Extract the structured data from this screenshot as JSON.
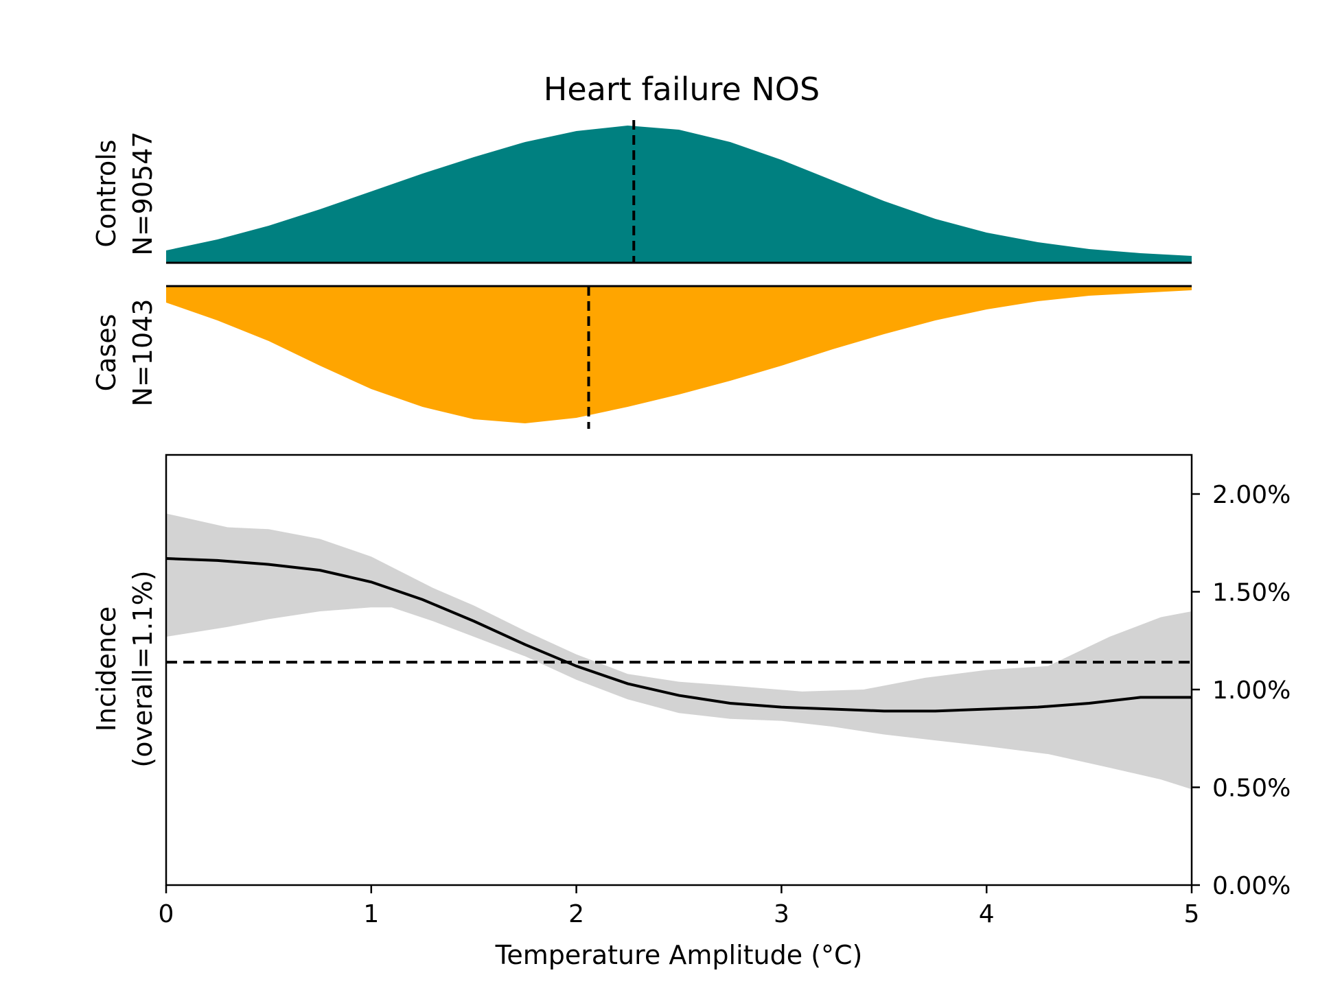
{
  "chart_data": {
    "type": "area",
    "title": "Heart failure NOS",
    "xlabel": "Temperature Amplitude (°C)",
    "xlim": [
      0,
      5
    ],
    "x_ticks": [
      "0",
      "1",
      "2",
      "3",
      "4",
      "5"
    ],
    "panels": {
      "controls": {
        "label_line1": "Controls",
        "label_line2": "N=90547",
        "color": "#008080",
        "mean_marker_x": 2.28,
        "density": {
          "x": [
            0,
            0.25,
            0.5,
            0.75,
            1.0,
            1.25,
            1.5,
            1.75,
            2.0,
            2.25,
            2.5,
            2.75,
            3.0,
            3.25,
            3.5,
            3.75,
            4.0,
            4.25,
            4.5,
            4.75,
            5.0
          ],
          "y": [
            0.09,
            0.17,
            0.27,
            0.39,
            0.52,
            0.65,
            0.77,
            0.88,
            0.96,
            1.0,
            0.97,
            0.88,
            0.75,
            0.6,
            0.45,
            0.32,
            0.22,
            0.15,
            0.1,
            0.07,
            0.05
          ]
        }
      },
      "cases": {
        "label_line1": "Cases",
        "label_line2": "N=1043",
        "color": "#FFA500",
        "mean_marker_x": 2.06,
        "density": {
          "x": [
            0,
            0.25,
            0.5,
            0.75,
            1.0,
            1.25,
            1.5,
            1.75,
            2.0,
            2.25,
            2.5,
            2.75,
            3.0,
            3.25,
            3.5,
            3.75,
            4.0,
            4.25,
            4.5,
            4.75,
            5.0
          ],
          "y": [
            0.12,
            0.25,
            0.4,
            0.58,
            0.75,
            0.88,
            0.97,
            1.0,
            0.96,
            0.88,
            0.79,
            0.69,
            0.58,
            0.46,
            0.35,
            0.25,
            0.17,
            0.11,
            0.07,
            0.05,
            0.03
          ]
        }
      }
    },
    "incidence": {
      "ylabel_line1": "Incidence",
      "ylabel_line2": "(overall=1.1%)",
      "ylim": [
        0,
        2.2
      ],
      "y_ticks": [
        {
          "value": 0.0,
          "label": "0.00%"
        },
        {
          "value": 0.5,
          "label": "0.50%"
        },
        {
          "value": 1.0,
          "label": "1.00%"
        },
        {
          "value": 1.5,
          "label": "1.50%"
        },
        {
          "value": 2.0,
          "label": "2.00%"
        }
      ],
      "overall_line_y": 1.14,
      "line": {
        "x": [
          0,
          0.25,
          0.5,
          0.75,
          1.0,
          1.25,
          1.5,
          1.75,
          2.0,
          2.25,
          2.5,
          2.75,
          3.0,
          3.25,
          3.5,
          3.75,
          4.0,
          4.25,
          4.5,
          4.75,
          5.0
        ],
        "y": [
          1.67,
          1.66,
          1.64,
          1.61,
          1.55,
          1.46,
          1.35,
          1.23,
          1.12,
          1.03,
          0.97,
          0.93,
          0.91,
          0.9,
          0.89,
          0.89,
          0.9,
          0.91,
          0.93,
          0.96,
          0.96
        ]
      },
      "ci_upper": {
        "x": [
          0,
          0.3,
          0.5,
          0.75,
          1.0,
          1.3,
          1.5,
          1.75,
          2.0,
          2.25,
          2.5,
          2.75,
          3.1,
          3.4,
          3.7,
          4.0,
          4.3,
          4.6,
          4.85,
          5.0
        ],
        "y": [
          1.9,
          1.83,
          1.82,
          1.77,
          1.68,
          1.52,
          1.43,
          1.3,
          1.18,
          1.08,
          1.04,
          1.02,
          0.99,
          1.0,
          1.06,
          1.1,
          1.12,
          1.27,
          1.37,
          1.4
        ]
      },
      "ci_lower": {
        "x": [
          0,
          0.3,
          0.5,
          0.75,
          1.0,
          1.1,
          1.3,
          1.5,
          1.75,
          2.0,
          2.25,
          2.5,
          2.75,
          3.0,
          3.25,
          3.5,
          3.75,
          4.0,
          4.3,
          4.6,
          4.85,
          5.0
        ],
        "y": [
          1.27,
          1.32,
          1.36,
          1.4,
          1.42,
          1.42,
          1.35,
          1.27,
          1.17,
          1.05,
          0.95,
          0.88,
          0.85,
          0.84,
          0.81,
          0.77,
          0.74,
          0.71,
          0.67,
          0.6,
          0.54,
          0.49
        ]
      }
    }
  }
}
